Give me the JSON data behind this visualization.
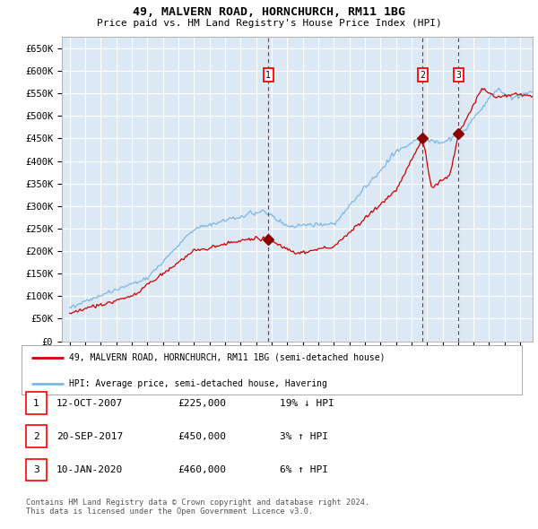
{
  "title": "49, MALVERN ROAD, HORNCHURCH, RM11 1BG",
  "subtitle": "Price paid vs. HM Land Registry's House Price Index (HPI)",
  "background_color": "#dce9f5",
  "plot_bg_color": "#dce9f5",
  "grid_color": "#ffffff",
  "hpi_color": "#7ab8e8",
  "price_color": "#cc0000",
  "marker_color": "#8b0000",
  "transactions": [
    {
      "date_num": 2007.79,
      "price": 225000,
      "label": "1"
    },
    {
      "date_num": 2017.72,
      "price": 450000,
      "label": "2"
    },
    {
      "date_num": 2020.03,
      "price": 460000,
      "label": "3"
    }
  ],
  "vline_dates": [
    2007.79,
    2017.72,
    2020.03
  ],
  "ylim": [
    0,
    675000
  ],
  "xlim": [
    1994.5,
    2024.8
  ],
  "yticks": [
    0,
    50000,
    100000,
    150000,
    200000,
    250000,
    300000,
    350000,
    400000,
    450000,
    500000,
    550000,
    600000,
    650000
  ],
  "ytick_labels": [
    "£0",
    "£50K",
    "£100K",
    "£150K",
    "£200K",
    "£250K",
    "£300K",
    "£350K",
    "£400K",
    "£450K",
    "£500K",
    "£550K",
    "£600K",
    "£650K"
  ],
  "legend_entries": [
    "49, MALVERN ROAD, HORNCHURCH, RM11 1BG (semi-detached house)",
    "HPI: Average price, semi-detached house, Havering"
  ],
  "table_rows": [
    {
      "num": "1",
      "date": "12-OCT-2007",
      "price": "£225,000",
      "change": "19% ↓ HPI"
    },
    {
      "num": "2",
      "date": "20-SEP-2017",
      "price": "£450,000",
      "change": "3% ↑ HPI"
    },
    {
      "num": "3",
      "date": "10-JAN-2020",
      "price": "£460,000",
      "change": "6% ↑ HPI"
    }
  ],
  "footer": "Contains HM Land Registry data © Crown copyright and database right 2024.\nThis data is licensed under the Open Government Licence v3.0."
}
